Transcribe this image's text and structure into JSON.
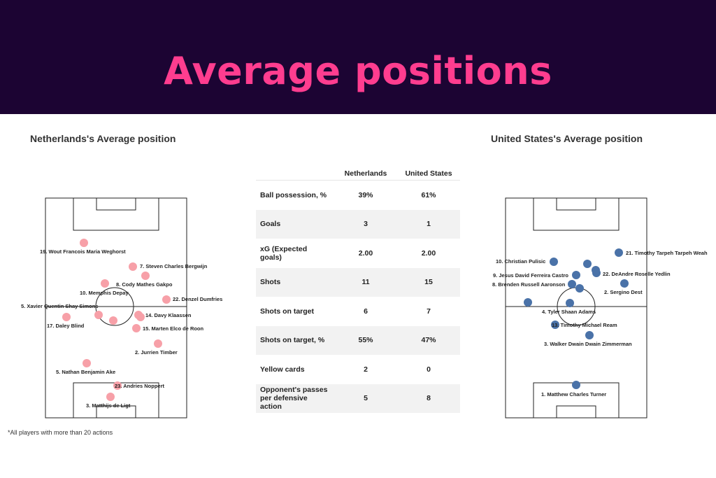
{
  "title": "Average positions",
  "home": {
    "heading": "Netherlands's Average position",
    "color": "#f7a0a8",
    "players": [
      {
        "label": "19. Wout Francois Maria Weghorst"
      },
      {
        "label": "7. Steven Charles Bergwijn"
      },
      {
        "label": "8. Cody Mathes Gakpo"
      },
      {
        "label": "10. Memphis Depay"
      },
      {
        "label": "22. Denzel Dumfries"
      },
      {
        "label": "5. Xavier Quentin Shay Simons"
      },
      {
        "label": "17. Daley Blind"
      },
      {
        "label": "14. Davy Klaassen"
      },
      {
        "label": "15. Marten Elco de Roon"
      },
      {
        "label": "2. Jurrien Timber"
      },
      {
        "label": "5. Nathan Benjamin Ake"
      },
      {
        "label": "23. Andries Noppert"
      },
      {
        "label": "3. Matthijs de Ligt"
      }
    ]
  },
  "away": {
    "heading": "United States's Average position",
    "color": "#4a72a8",
    "players": [
      {
        "label": "21. Timothy Tarpeh Tarpeh Weah"
      },
      {
        "label": "10. Christian Pulisic"
      },
      {
        "label": "22. DeAndre Roselle Yedlin"
      },
      {
        "label": "9. Jesus David Ferreira Castro"
      },
      {
        "label": "8. Brenden Russell Aaronson"
      },
      {
        "label": "2. Sergino Dest"
      },
      {
        "label": "4. Tyler Shaan Adams"
      },
      {
        "label": "13. Timothy Michael Ream"
      },
      {
        "label": "3. Walker Dwain Dwain Zimmerman"
      },
      {
        "label": "1. Matthew Charles Turner"
      }
    ]
  },
  "stats": {
    "headers": [
      "",
      "Netherlands",
      "United States"
    ],
    "rows": [
      {
        "label": "Ball possession, %",
        "home": "39%",
        "away": "61%"
      },
      {
        "label": "Goals",
        "home": "3",
        "away": "1"
      },
      {
        "label": "xG (Expected goals)",
        "home": "2.00",
        "away": "2.00"
      },
      {
        "label": "Shots",
        "home": "11",
        "away": "15"
      },
      {
        "label": "Shots on target",
        "home": "6",
        "away": "7"
      },
      {
        "label": "Shots on target, %",
        "home": "55%",
        "away": "47%"
      },
      {
        "label": "Yellow cards",
        "home": "2",
        "away": "0"
      },
      {
        "label": "Opponent's passes per defensive action",
        "home": "5",
        "away": "8"
      }
    ]
  },
  "footnote": "*All players with more than 20 actions"
}
